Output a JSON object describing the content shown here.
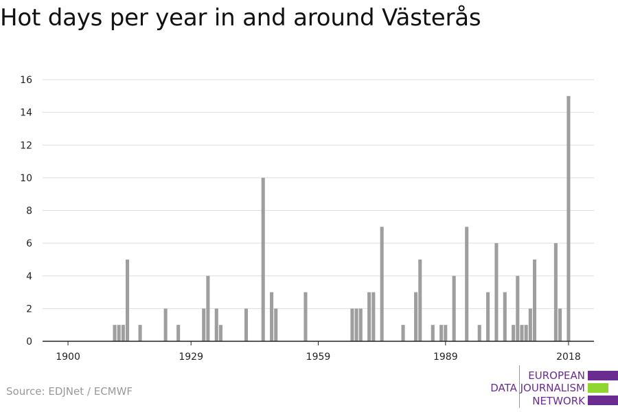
{
  "title": "Hot days per year in and around Västerås",
  "source": "Source: EDJNet / ECMWF",
  "logo": {
    "lines": [
      "EUROPEAN",
      "DATA JOURNALISM",
      "NETWORK"
    ],
    "colors": [
      "#6a2c91",
      "#8fd630",
      "#6a2c91"
    ]
  },
  "chart_data": {
    "type": "bar",
    "title": "Hot days per year in and around Västerås",
    "xlabel": "",
    "ylabel": "",
    "xlim": [
      1894,
      2024
    ],
    "ylim": [
      0,
      16
    ],
    "xticks": [
      1900,
      1929,
      1959,
      1989,
      2018
    ],
    "yticks": [
      0,
      2,
      4,
      6,
      8,
      10,
      12,
      14,
      16
    ],
    "grid": true,
    "bar_color": "#9e9e9e",
    "x": [
      1900,
      1901,
      1902,
      1903,
      1904,
      1905,
      1906,
      1907,
      1908,
      1909,
      1910,
      1911,
      1912,
      1913,
      1914,
      1915,
      1916,
      1917,
      1918,
      1919,
      1920,
      1921,
      1922,
      1923,
      1924,
      1925,
      1926,
      1927,
      1928,
      1929,
      1930,
      1931,
      1932,
      1933,
      1934,
      1935,
      1936,
      1937,
      1938,
      1939,
      1940,
      1941,
      1942,
      1943,
      1944,
      1945,
      1946,
      1947,
      1948,
      1949,
      1950,
      1951,
      1952,
      1953,
      1954,
      1955,
      1956,
      1957,
      1958,
      1959,
      1960,
      1961,
      1962,
      1963,
      1964,
      1965,
      1966,
      1967,
      1968,
      1969,
      1970,
      1971,
      1972,
      1973,
      1974,
      1975,
      1976,
      1977,
      1978,
      1979,
      1980,
      1981,
      1982,
      1983,
      1984,
      1985,
      1986,
      1987,
      1988,
      1989,
      1990,
      1991,
      1992,
      1993,
      1994,
      1995,
      1996,
      1997,
      1998,
      1999,
      2000,
      2001,
      2002,
      2003,
      2004,
      2005,
      2006,
      2007,
      2008,
      2009,
      2010,
      2011,
      2012,
      2013,
      2014,
      2015,
      2016,
      2017,
      2018
    ],
    "values": [
      0,
      0,
      0,
      0,
      0,
      0,
      0,
      0,
      0,
      0,
      0,
      1,
      1,
      1,
      5,
      0,
      0,
      1,
      0,
      0,
      0,
      0,
      0,
      2,
      0,
      0,
      1,
      0,
      0,
      0,
      0,
      0,
      2,
      4,
      0,
      2,
      1,
      0,
      0,
      0,
      0,
      0,
      2,
      0,
      0,
      0,
      10,
      0,
      3,
      2,
      0,
      0,
      0,
      0,
      0,
      0,
      3,
      0,
      0,
      0,
      0,
      0,
      0,
      0,
      0,
      0,
      0,
      2,
      2,
      2,
      0,
      3,
      3,
      0,
      7,
      0,
      0,
      0,
      0,
      1,
      0,
      0,
      3,
      5,
      0,
      0,
      1,
      0,
      1,
      1,
      0,
      4,
      0,
      0,
      7,
      0,
      0,
      1,
      0,
      3,
      0,
      6,
      0,
      3,
      0,
      1,
      4,
      1,
      1,
      2,
      5,
      0,
      0,
      0,
      0,
      6,
      2,
      0,
      15
    ]
  }
}
